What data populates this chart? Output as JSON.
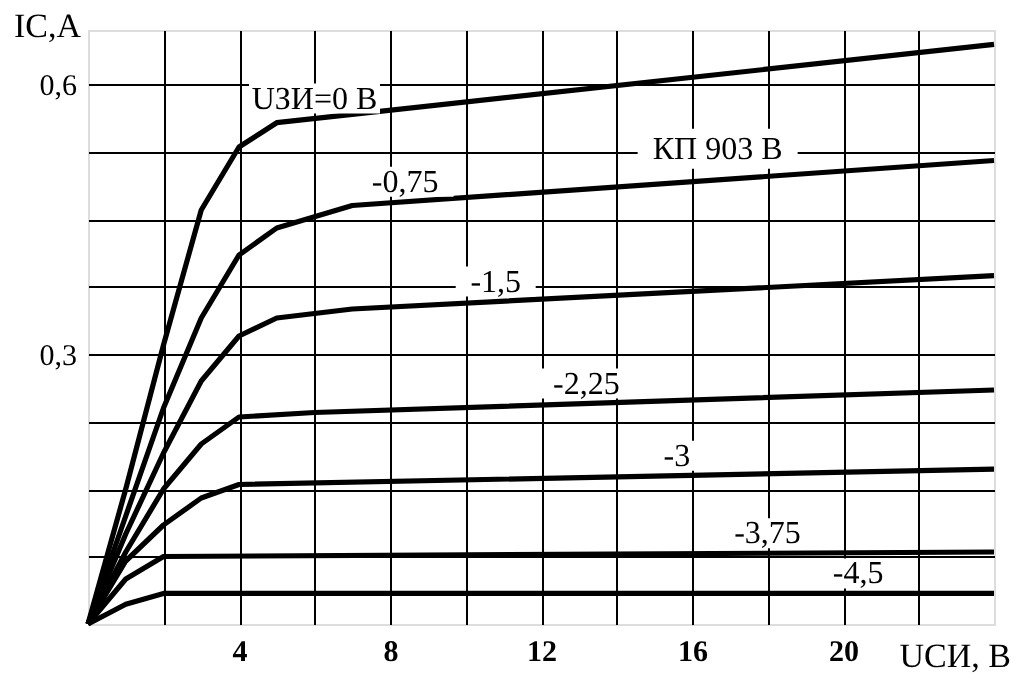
{
  "chart_data": {
    "type": "line",
    "xlabel": "UСИ, В",
    "ylabel": "IC,A",
    "xlim": [
      0,
      24
    ],
    "ylim": [
      0,
      0.66
    ],
    "xticks": [
      {
        "value": 2,
        "label": null
      },
      4,
      {
        "value": 6,
        "label": null
      },
      8,
      {
        "value": 10,
        "label": null
      },
      12,
      {
        "value": 14,
        "label": null
      },
      16,
      {
        "value": 18,
        "label": null
      },
      20,
      {
        "value": 22,
        "label": null
      }
    ],
    "yticks": [
      {
        "value": 0.075,
        "label": null
      },
      {
        "value": 0.15,
        "label": null
      },
      {
        "value": 0.225,
        "label": null
      },
      {
        "value": 0.3,
        "label": "0,3"
      },
      {
        "value": 0.375,
        "label": null
      },
      {
        "value": 0.45,
        "label": null
      },
      {
        "value": 0.525,
        "label": null
      },
      {
        "value": 0.6,
        "label": "0,6"
      }
    ],
    "grid": true,
    "marker": "none",
    "line_style": "solid",
    "series": [
      {
        "name": "UЗИ=0 В",
        "color": "#000000",
        "x": [
          0,
          1,
          2,
          3,
          4,
          5,
          24
        ],
        "values": [
          0,
          0.15,
          0.31,
          0.46,
          0.53,
          0.557,
          0.644
        ]
      },
      {
        "name": "-0,75",
        "color": "#000000",
        "x": [
          0,
          1,
          2,
          3,
          4,
          5,
          7,
          24
        ],
        "values": [
          0,
          0.12,
          0.24,
          0.34,
          0.41,
          0.44,
          0.465,
          0.515
        ]
      },
      {
        "name": "-1,5",
        "color": "#000000",
        "x": [
          0,
          1,
          2,
          3,
          4,
          5,
          7,
          24
        ],
        "values": [
          0,
          0.1,
          0.19,
          0.27,
          0.32,
          0.34,
          0.35,
          0.387
        ]
      },
      {
        "name": "-2,25",
        "color": "#000000",
        "x": [
          0,
          1,
          2,
          3,
          4,
          6,
          24
        ],
        "values": [
          0,
          0.08,
          0.15,
          0.2,
          0.23,
          0.235,
          0.26
        ]
      },
      {
        "name": "-3",
        "color": "#000000",
        "x": [
          0,
          1,
          2,
          3,
          4,
          24
        ],
        "values": [
          0,
          0.07,
          0.11,
          0.14,
          0.155,
          0.172
        ]
      },
      {
        "name": "-3,75",
        "color": "#000000",
        "x": [
          0,
          1,
          2,
          24
        ],
        "values": [
          0,
          0.05,
          0.075,
          0.08
        ]
      },
      {
        "name": "-4,5",
        "color": "#000000",
        "x": [
          0,
          1,
          2,
          24
        ],
        "values": [
          0,
          0.022,
          0.034,
          0.034
        ]
      }
    ],
    "annotations": [
      "КП 903 В"
    ]
  }
}
